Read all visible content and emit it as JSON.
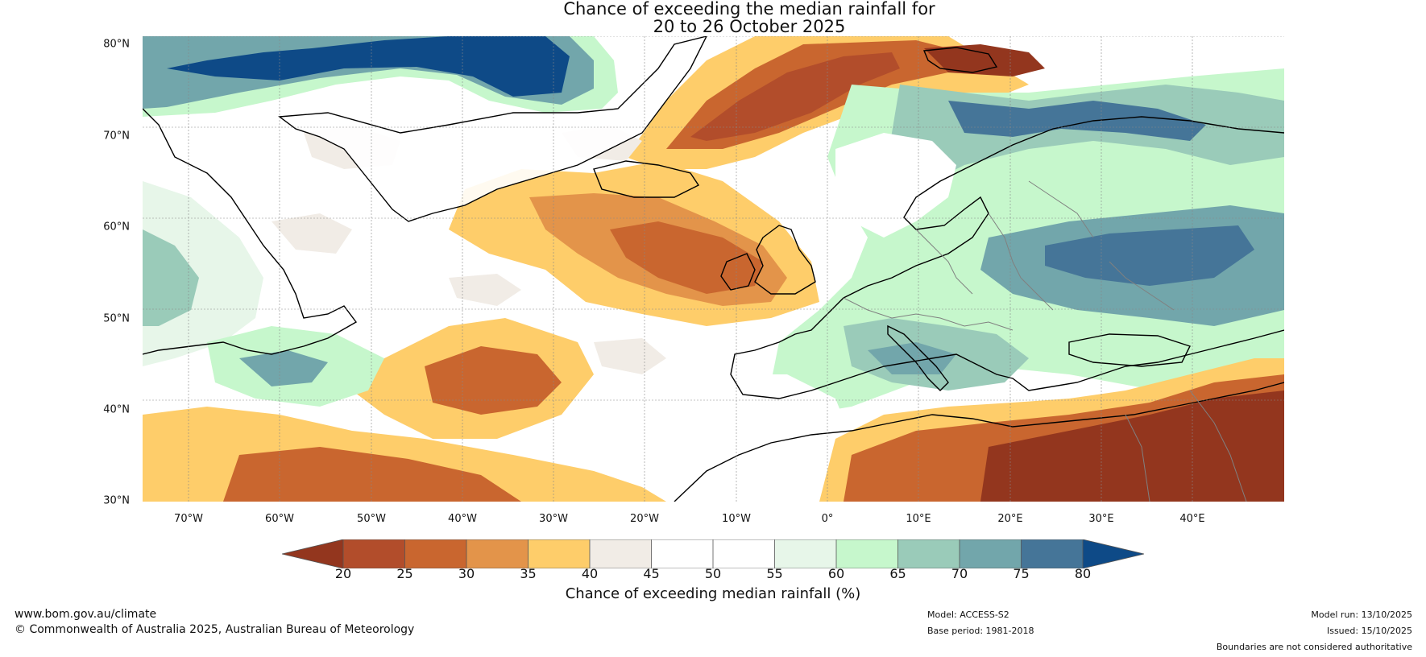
{
  "title": {
    "line1": "Chance of exceeding the median rainfall for",
    "line2": "20 to 26 October 2025"
  },
  "map": {
    "lat_labels": [
      "80°N",
      "70°N",
      "60°N",
      "50°N",
      "40°N",
      "30°N"
    ],
    "lon_labels": [
      "70°W",
      "60°W",
      "50°W",
      "40°W",
      "30°W",
      "20°W",
      "10°W",
      "0°",
      "10°E",
      "20°E",
      "30°E",
      "40°E"
    ],
    "lat_range": [
      30,
      80
    ],
    "lon_range": [
      -75,
      50
    ]
  },
  "legend": {
    "ticks": [
      "20",
      "25",
      "30",
      "35",
      "40",
      "45",
      "50",
      "55",
      "60",
      "65",
      "70",
      "75",
      "80"
    ],
    "label": "Chance of exceeding median rainfall (%)",
    "colors": [
      "#93361e",
      "#b24d2b",
      "#c9662f",
      "#e3944a",
      "#fecd6a",
      "#f1ece6",
      "#ffffff",
      "#ffffff",
      "#e7f6e9",
      "#c6f7cc",
      "#9acbb9",
      "#72a6ab",
      "#457598",
      "#0e4a87"
    ]
  },
  "footer": {
    "website": "www.bom.gov.au/climate",
    "copyright": "© Commonwealth of Australia 2025, Australian Bureau of Meteorology",
    "model": "Model: ACCESS-S2",
    "base_period": "Base period: 1981-2018",
    "model_run": "Model run: 13/10/2025",
    "issued": "Issued: 15/10/2025",
    "disclaimer": "Boundaries are not considered authoritative"
  }
}
